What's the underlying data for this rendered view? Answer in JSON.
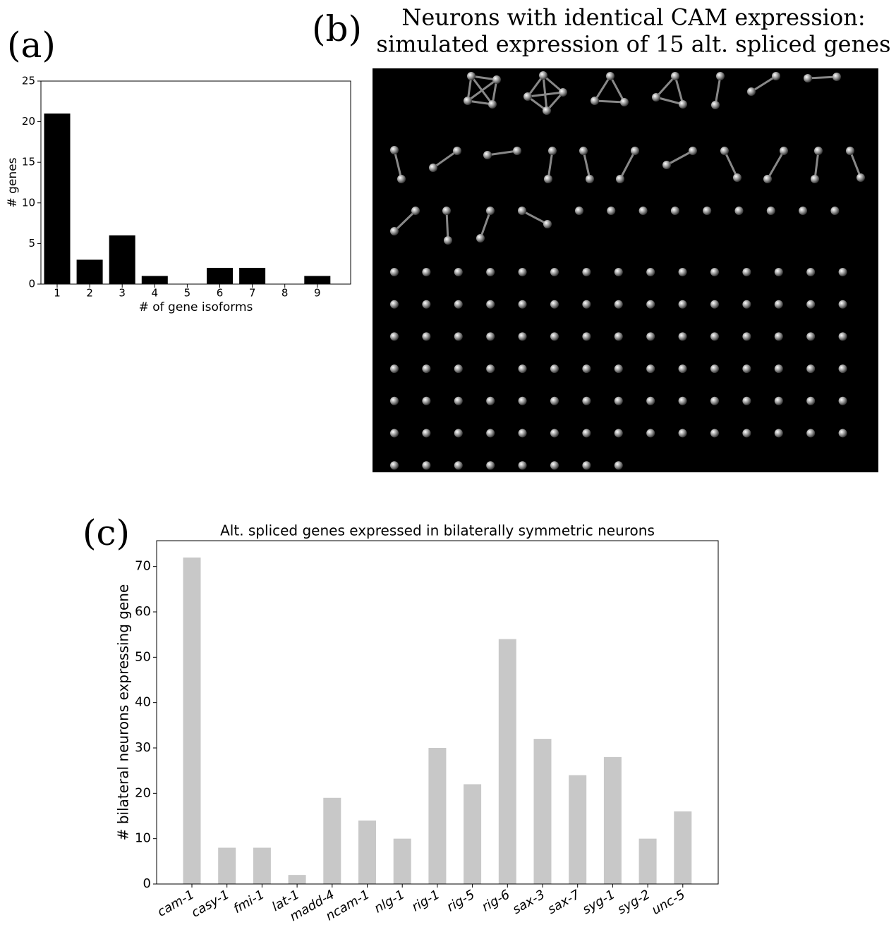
{
  "chart_data": [
    {
      "type": "bar",
      "panel_label": "(a)",
      "xlabel": "# of gene isoforms",
      "ylabel": "# genes",
      "categories": [
        "1",
        "2",
        "3",
        "4",
        "5",
        "6",
        "7",
        "8",
        "9"
      ],
      "values": [
        21,
        3,
        6,
        1,
        0,
        2,
        2,
        0,
        1
      ],
      "color": "#000000",
      "ylim": [
        0,
        25
      ],
      "yticks": [
        0,
        5,
        10,
        15,
        20,
        25
      ]
    },
    {
      "type": "bar",
      "panel_label": "(c)",
      "title": "Alt. spliced genes expressed in bilaterally symmetric neurons",
      "ylabel": "# bilateral neurons expressing gene",
      "categories": [
        "cam-1",
        "casy-1",
        "fmi-1",
        "lat-1",
        "madd-4",
        "ncam-1",
        "nlg-1",
        "rig-1",
        "rig-5",
        "rig-6",
        "sax-3",
        "sax-7",
        "syg-1",
        "syg-2",
        "unc-5"
      ],
      "values": [
        72,
        8,
        8,
        2,
        19,
        14,
        10,
        30,
        22,
        54,
        32,
        24,
        28,
        10,
        16
      ],
      "color": "#c8c8c8",
      "ylim": [
        0,
        75.7
      ],
      "yticks": [
        0,
        10,
        20,
        30,
        40,
        50,
        60,
        70
      ]
    }
  ],
  "figure_b": {
    "panel_label": "(b)",
    "title": [
      "Neurons with identical CAM expression:",
      "simulated expression of 15 alt. spliced genes"
    ]
  }
}
